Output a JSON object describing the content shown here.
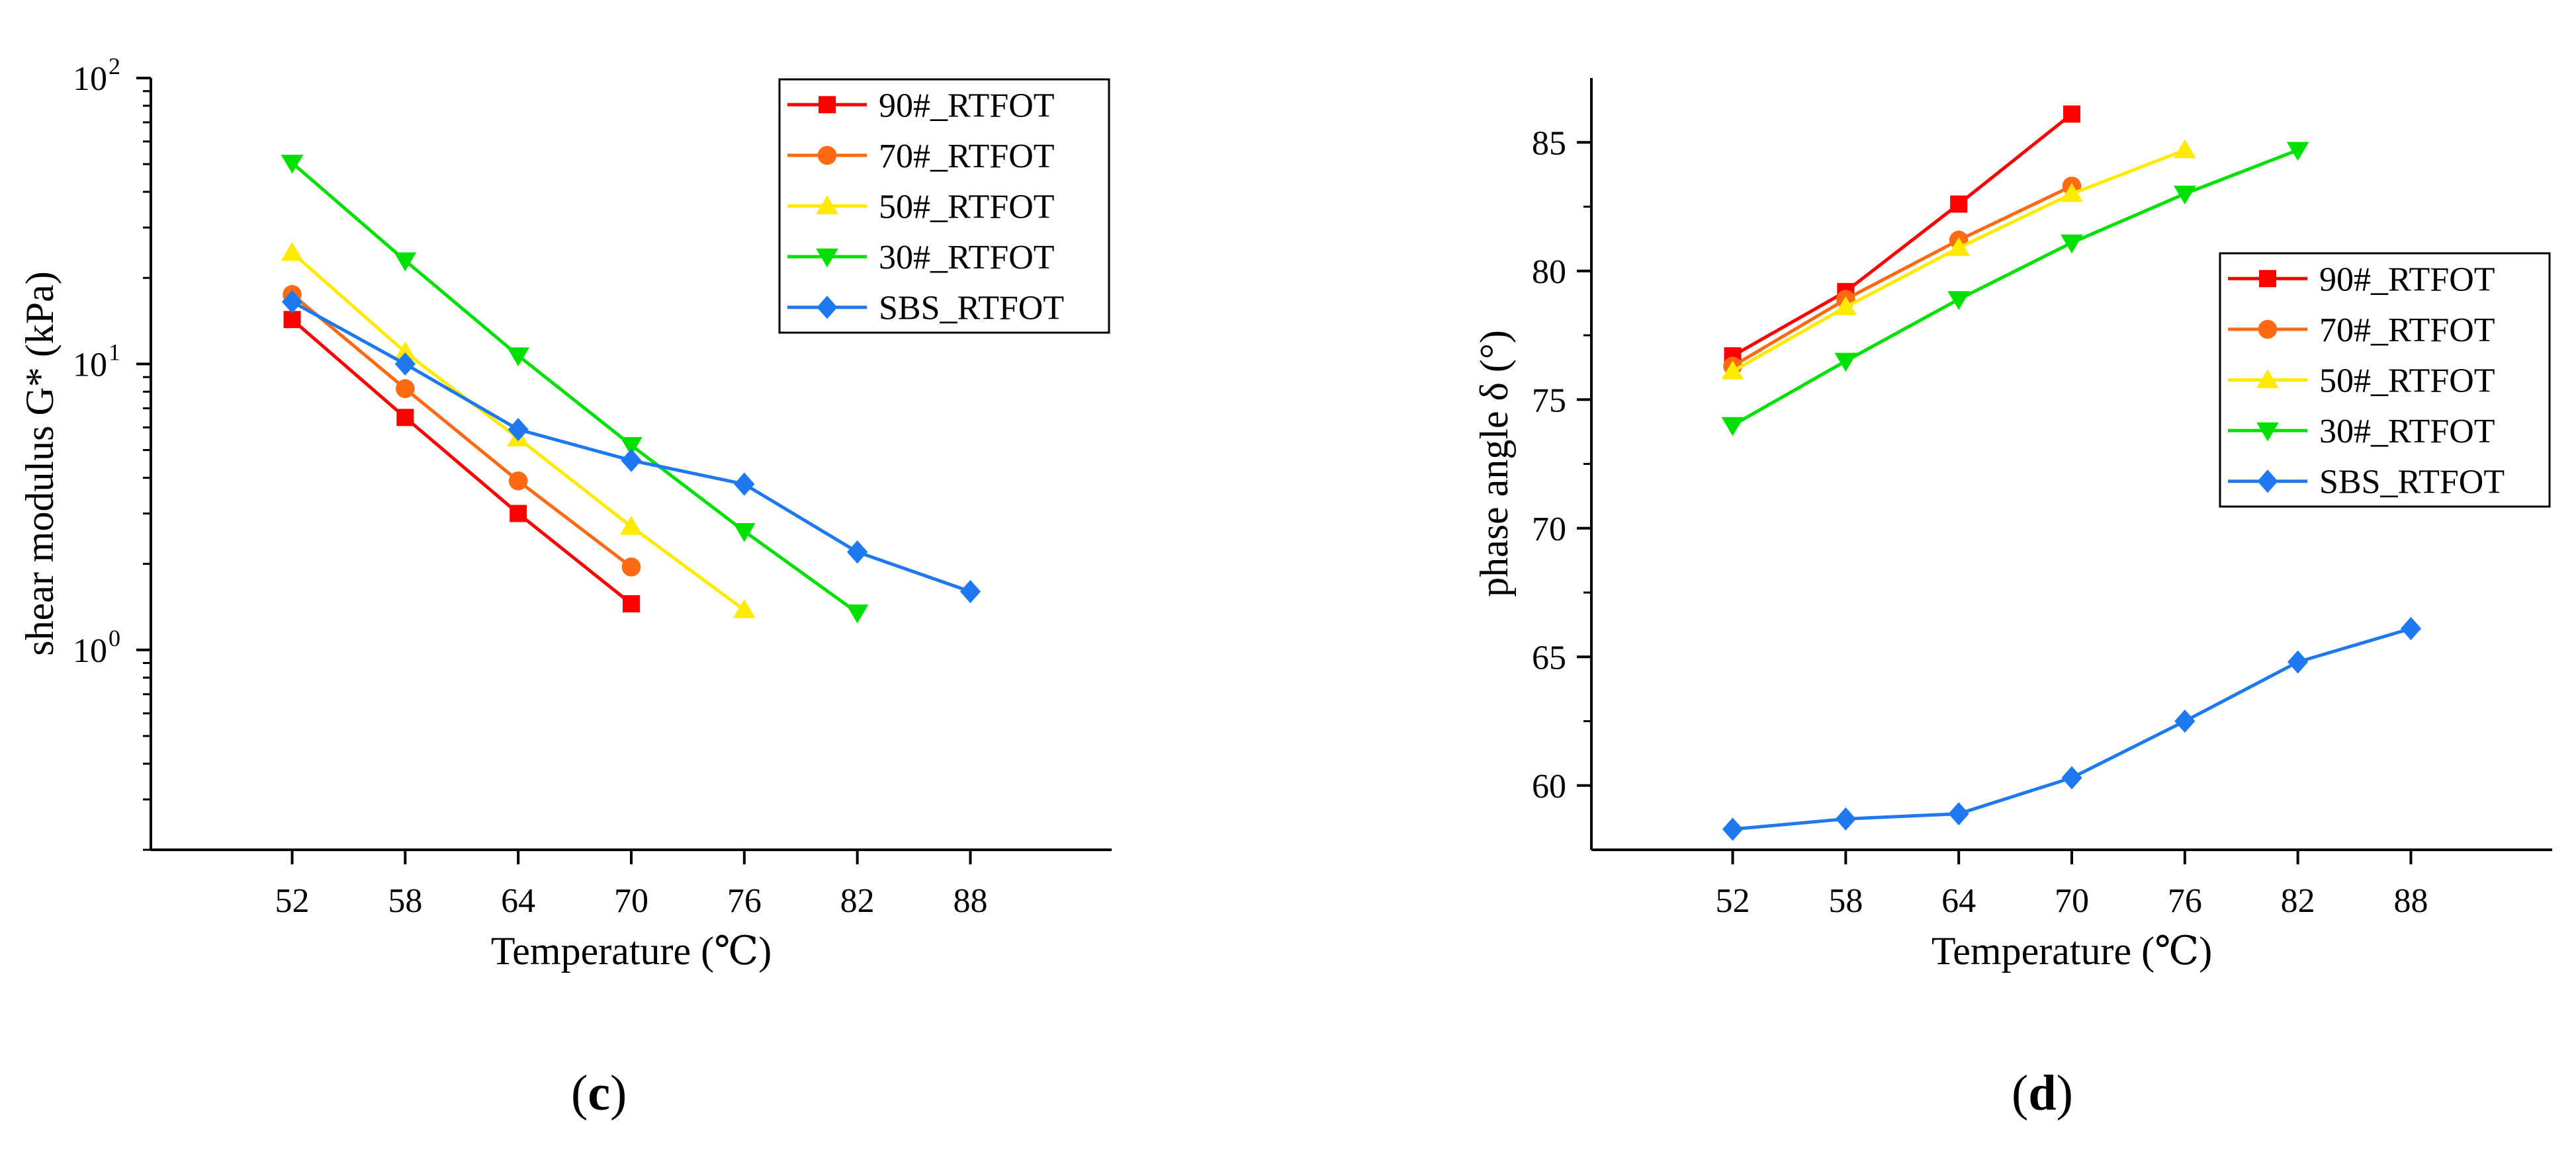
{
  "chart_data": [
    {
      "type": "line",
      "panel": "c",
      "xlabel": "Temperature (℃)",
      "ylabel": "shear modulus G* (kPa)",
      "yscale": "log",
      "xlim": [
        44.5,
        95.5
      ],
      "ylim": [
        0.2,
        100
      ],
      "x_ticks": [
        52,
        58,
        64,
        70,
        76,
        82,
        88
      ],
      "y_ticks": [
        {
          "value": 1,
          "base": "10",
          "exp": "0"
        },
        {
          "value": 10,
          "base": "10",
          "exp": "1"
        },
        {
          "value": 100,
          "base": "10",
          "exp": "2"
        }
      ],
      "legend_position": "top-right",
      "series": [
        {
          "name": "90#_RTFOT",
          "color": "#ff0000",
          "marker": "square",
          "x": [
            52,
            58,
            64,
            70
          ],
          "values": [
            14.3,
            6.5,
            3.0,
            1.45
          ]
        },
        {
          "name": "70#_RTFOT",
          "color": "#ff6a13",
          "marker": "circle",
          "x": [
            52,
            58,
            64,
            70
          ],
          "values": [
            17.5,
            8.2,
            3.9,
            1.95
          ]
        },
        {
          "name": "50#_RTFOT",
          "color": "#ffea00",
          "marker": "triangle-up",
          "x": [
            52,
            58,
            64,
            70,
            76
          ],
          "values": [
            24.5,
            11.0,
            5.5,
            2.7,
            1.38
          ]
        },
        {
          "name": "30#_RTFOT",
          "color": "#00e000",
          "marker": "triangle-down",
          "x": [
            52,
            58,
            64,
            70,
            76,
            82
          ],
          "values": [
            50.5,
            23.0,
            10.7,
            5.2,
            2.6,
            1.35
          ]
        },
        {
          "name": "SBS_RTFOT",
          "color": "#1e78f0",
          "marker": "diamond",
          "x": [
            52,
            58,
            64,
            70,
            76,
            82,
            88
          ],
          "values": [
            16.5,
            10.0,
            5.9,
            4.6,
            3.8,
            2.2,
            1.6
          ]
        }
      ]
    },
    {
      "type": "line",
      "panel": "d",
      "xlabel": "Temperature (℃)",
      "ylabel": "phase angle δ (°)",
      "yscale": "linear",
      "xlim": [
        44.5,
        95.5
      ],
      "ylim": [
        57.5,
        87.5
      ],
      "x_ticks": [
        52,
        58,
        64,
        70,
        76,
        82,
        88
      ],
      "y_ticks": [
        60,
        65,
        70,
        75,
        80,
        85
      ],
      "legend_position": "center-right",
      "series": [
        {
          "name": "90#_RTFOT",
          "color": "#ff0000",
          "marker": "square",
          "x": [
            52,
            58,
            64,
            70
          ],
          "values": [
            76.7,
            79.2,
            82.6,
            86.1
          ]
        },
        {
          "name": "70#_RTFOT",
          "color": "#ff6a13",
          "marker": "circle",
          "x": [
            52,
            58,
            64,
            70
          ],
          "values": [
            76.3,
            78.9,
            81.2,
            83.3
          ]
        },
        {
          "name": "50#_RTFOT",
          "color": "#ffea00",
          "marker": "triangle-up",
          "x": [
            52,
            58,
            64,
            70,
            76
          ],
          "values": [
            76.1,
            78.6,
            80.9,
            83.0,
            84.7
          ]
        },
        {
          "name": "30#_RTFOT",
          "color": "#00e000",
          "marker": "triangle-down",
          "x": [
            52,
            58,
            64,
            70,
            76,
            82
          ],
          "values": [
            74.0,
            76.5,
            78.9,
            81.1,
            83.0,
            84.7
          ]
        },
        {
          "name": "SBS_RTFOT",
          "color": "#1e78f0",
          "marker": "diamond",
          "x": [
            52,
            58,
            64,
            70,
            76,
            82,
            88
          ],
          "values": [
            58.3,
            58.7,
            58.9,
            60.3,
            62.5,
            64.8,
            66.1
          ]
        }
      ]
    }
  ],
  "captions": {
    "c": {
      "open": "(",
      "letter": "c",
      "close": ")"
    },
    "d": {
      "open": "(",
      "letter": "d",
      "close": ")"
    }
  }
}
